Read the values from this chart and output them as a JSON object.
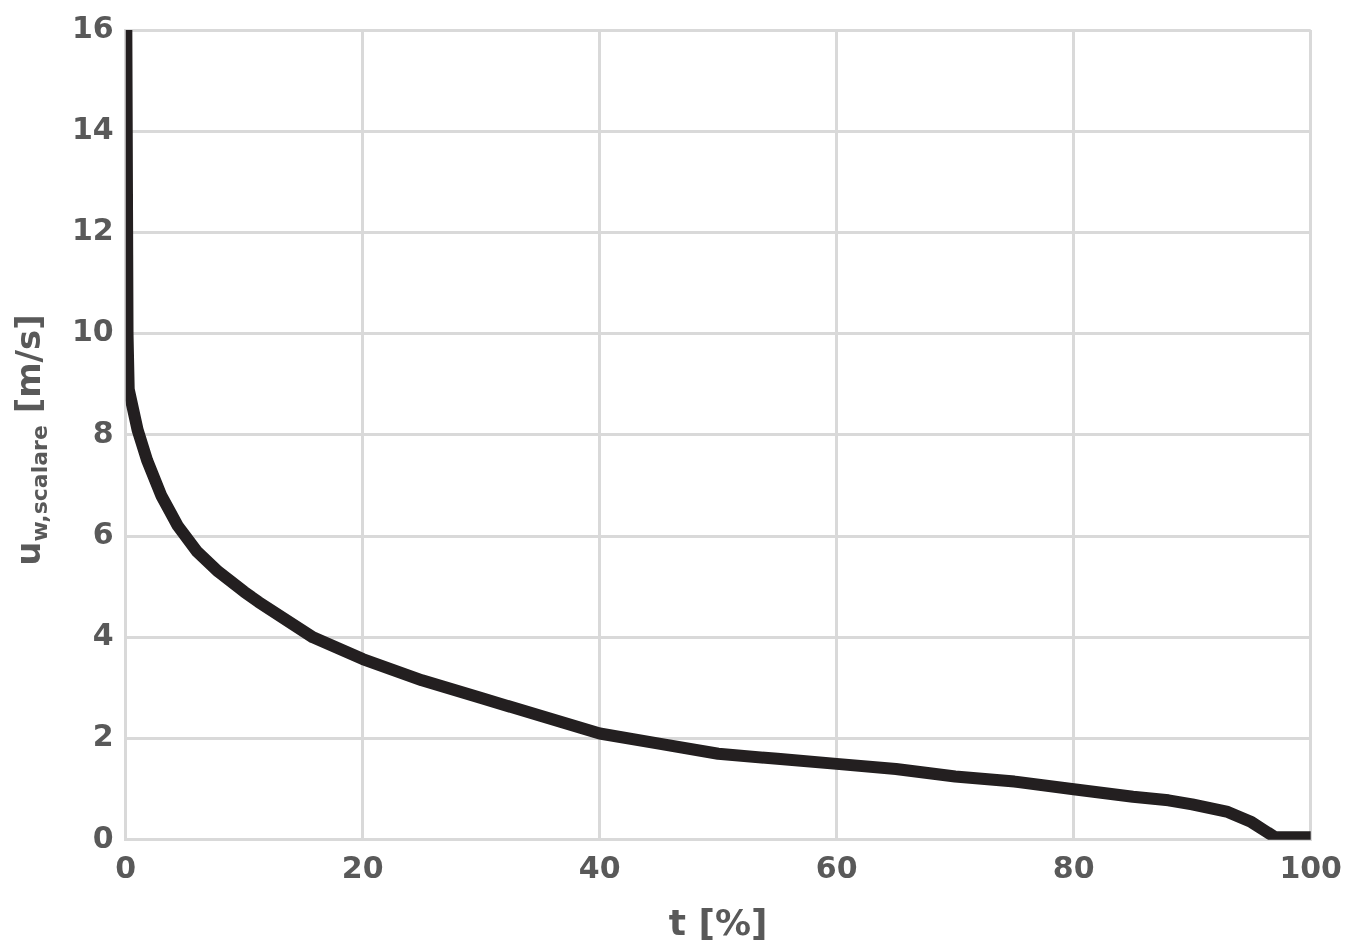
{
  "chart_data": {
    "type": "line",
    "xlabel": "t [%]",
    "ylabel": "u$_{w,scalare}$ [m/s]",
    "xlim": [
      0,
      100
    ],
    "xticks": [
      0,
      20,
      40,
      60,
      80,
      100
    ],
    "ylim": [
      0,
      16
    ],
    "yticks": [
      0,
      2,
      4,
      6,
      8,
      10,
      12,
      14,
      16
    ],
    "grid": true,
    "legend": false,
    "marker": "none",
    "line_style": "solid",
    "series": [
      {
        "color": "#231f20",
        "x": [
          0.05,
          0.15,
          0.25,
          1,
          1.8,
          3,
          4.4,
          6,
          7.8,
          10,
          11.2,
          15.8,
          20,
          25,
          30,
          35,
          40,
          45,
          50,
          55,
          60,
          65,
          70,
          75,
          80,
          85,
          88,
          90,
          93,
          95,
          96,
          97,
          98,
          100
        ],
        "values": [
          16,
          10,
          8.9,
          8.1,
          7.5,
          6.8,
          6.2,
          5.7,
          5.3,
          4.9,
          4.7,
          4.0,
          3.57,
          3.15,
          2.8,
          2.45,
          2.1,
          1.9,
          1.7,
          1.6,
          1.5,
          1.4,
          1.25,
          1.15,
          1.0,
          0.85,
          0.78,
          0.7,
          0.55,
          0.35,
          0.2,
          0.05,
          0.05,
          0.05
        ]
      }
    ]
  }
}
